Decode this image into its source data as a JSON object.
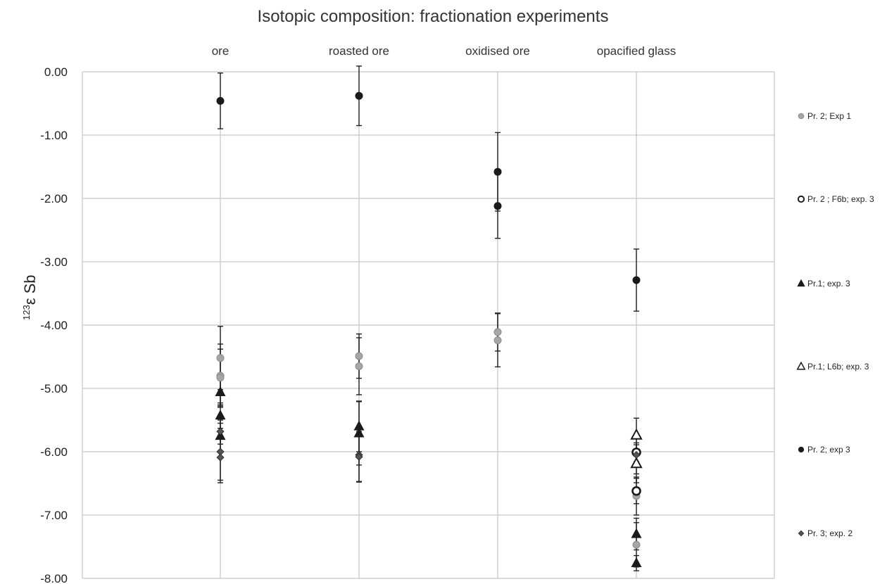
{
  "chart_data": {
    "type": "scatter",
    "title": "Isotopic composition: fractionation experiments",
    "ylabel": "ε Sb",
    "ylabel_superscript": "123",
    "categories": [
      "ore",
      "roasted ore",
      "oxidised ore",
      "opacified glass"
    ],
    "ylim": [
      -8.0,
      0.0
    ],
    "yticks": [
      "0.00",
      "-1.00",
      "-2.00",
      "-3.00",
      "-4.00",
      "-5.00",
      "-6.00",
      "-7.00",
      "-8.00"
    ],
    "grid": true,
    "legend_position": "right",
    "series": [
      {
        "name": "Pr. 2; Exp 1",
        "marker": "circle-grey",
        "color": "#a6a6a6",
        "points": [
          {
            "category": "ore",
            "y": -4.52,
            "err": 0.5
          },
          {
            "category": "ore",
            "y": -4.8,
            "err": 0.5
          },
          {
            "category": "ore",
            "y": -4.83,
            "err": 0.45
          },
          {
            "category": "roasted ore",
            "y": -4.49,
            "err": 0.35
          },
          {
            "category": "roasted ore",
            "y": -4.65,
            "err": 0.45
          },
          {
            "category": "oxidised ore",
            "y": -4.11,
            "err": 0.3
          },
          {
            "category": "oxidised ore",
            "y": -4.24,
            "err": 0.42
          },
          {
            "category": "opacified glass",
            "y": -6.7,
            "err": 0.3
          },
          {
            "category": "opacified glass",
            "y": -7.47,
            "err": 0.35
          }
        ]
      },
      {
        "name": "Pr. 2 ; F6b; exp. 3",
        "marker": "circle-open",
        "color": "#1a1a1a",
        "points": [
          {
            "category": "opacified glass",
            "y": -6.01,
            "err": 0.15
          },
          {
            "category": "opacified glass",
            "y": -6.62,
            "err": 0.2
          }
        ]
      },
      {
        "name": "Pr.1; exp. 3",
        "marker": "triangle-filled",
        "color": "#1a1a1a",
        "points": [
          {
            "category": "ore",
            "y": -5.06,
            "err": 0.2
          },
          {
            "category": "ore",
            "y": -5.43,
            "err": 0.2
          },
          {
            "category": "ore",
            "y": -5.75,
            "err": 0.25
          },
          {
            "category": "roasted ore",
            "y": -5.6,
            "err": 0.4
          },
          {
            "category": "roasted ore",
            "y": -5.71,
            "err": 0.5
          },
          {
            "category": "opacified glass",
            "y": -7.3,
            "err": 0.25
          },
          {
            "category": "opacified glass",
            "y": -7.76,
            "err": 0.12
          }
        ]
      },
      {
        "name": "Pr.1; L6b; exp. 3",
        "marker": "triangle-open",
        "color": "#1a1a1a",
        "points": [
          {
            "category": "opacified glass",
            "y": -5.74,
            "err": 0.27
          },
          {
            "category": "opacified glass",
            "y": -6.19,
            "err": 0.3
          }
        ]
      },
      {
        "name": "Pr. 2; exp 3",
        "marker": "circle-filled",
        "color": "#1a1a1a",
        "points": [
          {
            "category": "ore",
            "y": -0.46,
            "err": 0.44
          },
          {
            "category": "roasted ore",
            "y": -0.38,
            "err": 0.47
          },
          {
            "category": "oxidised ore",
            "y": -1.58,
            "err": 0.62
          },
          {
            "category": "oxidised ore",
            "y": -2.12,
            "err": 0.51
          },
          {
            "category": "opacified glass",
            "y": -3.29,
            "err": 0.49
          }
        ]
      },
      {
        "name": "Pr. 3; exp. 2",
        "marker": "diamond",
        "color": "#555555",
        "points": [
          {
            "category": "ore",
            "y": -5.68,
            "err": 0.2
          },
          {
            "category": "ore",
            "y": -6.0,
            "err": 0.45
          },
          {
            "category": "ore",
            "y": -6.09,
            "err": 0.4
          },
          {
            "category": "roasted ore",
            "y": -6.05,
            "err": 0.42
          },
          {
            "category": "roasted ore",
            "y": -6.08,
            "err": 0.4
          },
          {
            "category": "opacified glass",
            "y": -6.05,
            "err": 0.3
          }
        ]
      }
    ]
  }
}
